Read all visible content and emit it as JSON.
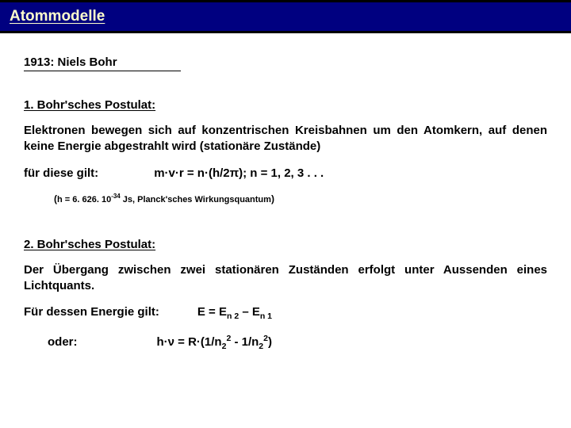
{
  "header": {
    "title": "Atommodelle"
  },
  "year_line": "1913: Niels Bohr",
  "postulat1": {
    "title": "1. Bohr'sches Postulat:",
    "text": "Elektronen bewegen sich auf konzentrischen Kreisbahnen um den Atomkern, auf denen keine Energie abgestrahlt wird (stationäre Zustände)",
    "prefix": "für diese gilt:",
    "formula": "m·v·r = n·(h/2π); n = 1, 2, 3 . . .",
    "note_open": "(",
    "note_h": "h = 6. 626. 10",
    "note_exp": "-34",
    "note_unit": " Js, Planck'sches Wirkungsquantum",
    "note_close": ")"
  },
  "postulat2": {
    "title": "2. Bohr'sches Postulat:",
    "text": "Der Übergang zwischen zwei stationären Zuständen erfolgt unter Aussenden eines Lichtquants.",
    "e_prefix": "Für dessen Energie gilt:",
    "e_formula_a": "E = E",
    "e_n2": "n 2",
    "e_mid": " – E",
    "e_n1": "n 1",
    "oder": "oder:",
    "r_a": "h·ν = R·(1/n",
    "r_sub": "2",
    "r_sup": "2",
    "r_mid": " - 1/n",
    "r_close": ")"
  },
  "colors": {
    "header_bg": "#000080",
    "header_text": "#ffffcc",
    "page_bg": "#ffffff",
    "text": "#000000"
  }
}
